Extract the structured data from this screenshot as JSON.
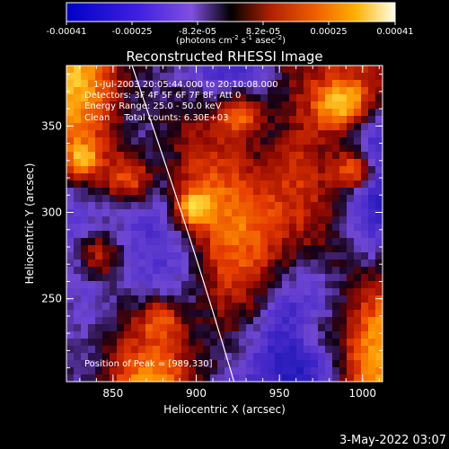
{
  "colorbar": {
    "ticks": [
      "-0.00041",
      "-0.00025",
      "-8.2e-05",
      "8.2e-05",
      "0.00025",
      "0.00041"
    ],
    "units_prefix": "(photons cm",
    "units_sup1": "-2",
    "units_mid1": " s",
    "units_sup2": "-1",
    "units_mid2": " asec",
    "units_sup3": "-2",
    "units_suffix": ")"
  },
  "chart_data": {
    "type": "heatmap",
    "title": "Reconstructed RHESSI Image",
    "xlabel": "Heliocentric X (arcsec)",
    "ylabel": "Heliocentric Y (arcsec)",
    "xlim": [
      822,
      1012
    ],
    "ylim": [
      202,
      385
    ],
    "x_ticks": [
      "850",
      "900",
      "950",
      "1000"
    ],
    "y_ticks": [
      "250",
      "300",
      "350"
    ],
    "value_range": [
      -0.00041,
      0.00041
    ],
    "colors": {
      "negative_low": "#1e1ec8",
      "negative_mid": "#7040d8",
      "zero": "#000000",
      "positive_mid": "#e06000",
      "positive_high": "#ffffc8"
    },
    "annotations": {
      "time_range": "1-Jul-2003 20:05:44.000 to 20:10:08.000",
      "detectors": "Detectors: 3F 4F 5F 6F 7F 8F, Att 0",
      "energy": "Energy Range: 25.0 - 50.0 keV",
      "clean": "Clean     Total counts: 6.30E+03",
      "peak": "Position of Peak = [989,330]"
    },
    "limb": true
  },
  "timestamp": "3-May-2022 03:07"
}
